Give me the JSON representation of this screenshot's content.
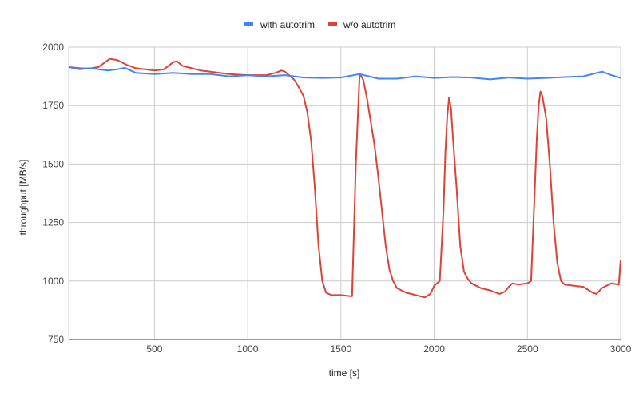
{
  "chart_data": {
    "type": "line",
    "title": "",
    "xlabel": "time [s]",
    "ylabel": "throughput [MB/s]",
    "xlim": [
      40,
      3000
    ],
    "ylim": [
      750,
      2000
    ],
    "x_ticks": [
      500,
      1000,
      1500,
      2000,
      2500,
      3000
    ],
    "y_ticks": [
      750,
      1000,
      1250,
      1500,
      1750,
      2000
    ],
    "grid": true,
    "legend_position": "top",
    "series": [
      {
        "name": "with autotrim",
        "color": "#4285F4",
        "x": [
          40,
          100,
          150,
          200,
          250,
          300,
          340,
          400,
          500,
          600,
          700,
          800,
          900,
          1000,
          1100,
          1200,
          1300,
          1400,
          1500,
          1600,
          1700,
          1800,
          1900,
          2000,
          2100,
          2200,
          2300,
          2400,
          2500,
          2600,
          2700,
          2800,
          2900,
          2950,
          3000
        ],
        "values": [
          1915,
          1905,
          1910,
          1905,
          1900,
          1905,
          1912,
          1890,
          1885,
          1890,
          1885,
          1885,
          1875,
          1880,
          1875,
          1880,
          1870,
          1868,
          1870,
          1885,
          1865,
          1865,
          1875,
          1868,
          1872,
          1870,
          1862,
          1870,
          1865,
          1868,
          1872,
          1875,
          1895,
          1880,
          1868
        ]
      },
      {
        "name": "w/o autotrim",
        "color": "#DB4437",
        "x": [
          40,
          100,
          150,
          200,
          260,
          300,
          350,
          400,
          450,
          500,
          550,
          600,
          620,
          650,
          700,
          750,
          800,
          900,
          1000,
          1100,
          1150,
          1180,
          1200,
          1250,
          1280,
          1300,
          1320,
          1340,
          1360,
          1380,
          1400,
          1420,
          1450,
          1500,
          1550,
          1560,
          1580,
          1600,
          1610,
          1620,
          1640,
          1660,
          1680,
          1700,
          1720,
          1740,
          1760,
          1780,
          1800,
          1850,
          1900,
          1950,
          1980,
          2000,
          2030,
          2050,
          2060,
          2070,
          2080,
          2090,
          2100,
          2120,
          2140,
          2160,
          2180,
          2200,
          2250,
          2300,
          2350,
          2380,
          2400,
          2420,
          2450,
          2500,
          2520,
          2540,
          2550,
          2560,
          2570,
          2580,
          2600,
          2620,
          2640,
          2660,
          2680,
          2700,
          2750,
          2800,
          2850,
          2870,
          2900,
          2950,
          2990,
          3000
        ],
        "values": [
          1915,
          1910,
          1908,
          1915,
          1950,
          1945,
          1925,
          1910,
          1905,
          1900,
          1905,
          1935,
          1940,
          1920,
          1910,
          1900,
          1895,
          1885,
          1880,
          1880,
          1890,
          1900,
          1895,
          1860,
          1820,
          1790,
          1720,
          1600,
          1400,
          1150,
          1000,
          950,
          940,
          940,
          935,
          935,
          1500,
          1880,
          1875,
          1860,
          1780,
          1680,
          1580,
          1450,
          1300,
          1150,
          1050,
          1000,
          970,
          950,
          940,
          930,
          945,
          980,
          1000,
          1300,
          1550,
          1700,
          1785,
          1740,
          1620,
          1400,
          1150,
          1040,
          1010,
          990,
          970,
          960,
          945,
          955,
          975,
          990,
          985,
          990,
          1000,
          1400,
          1600,
          1750,
          1810,
          1790,
          1700,
          1500,
          1250,
          1080,
          1000,
          985,
          980,
          975,
          950,
          945,
          970,
          990,
          985,
          1090
        ]
      }
    ]
  }
}
